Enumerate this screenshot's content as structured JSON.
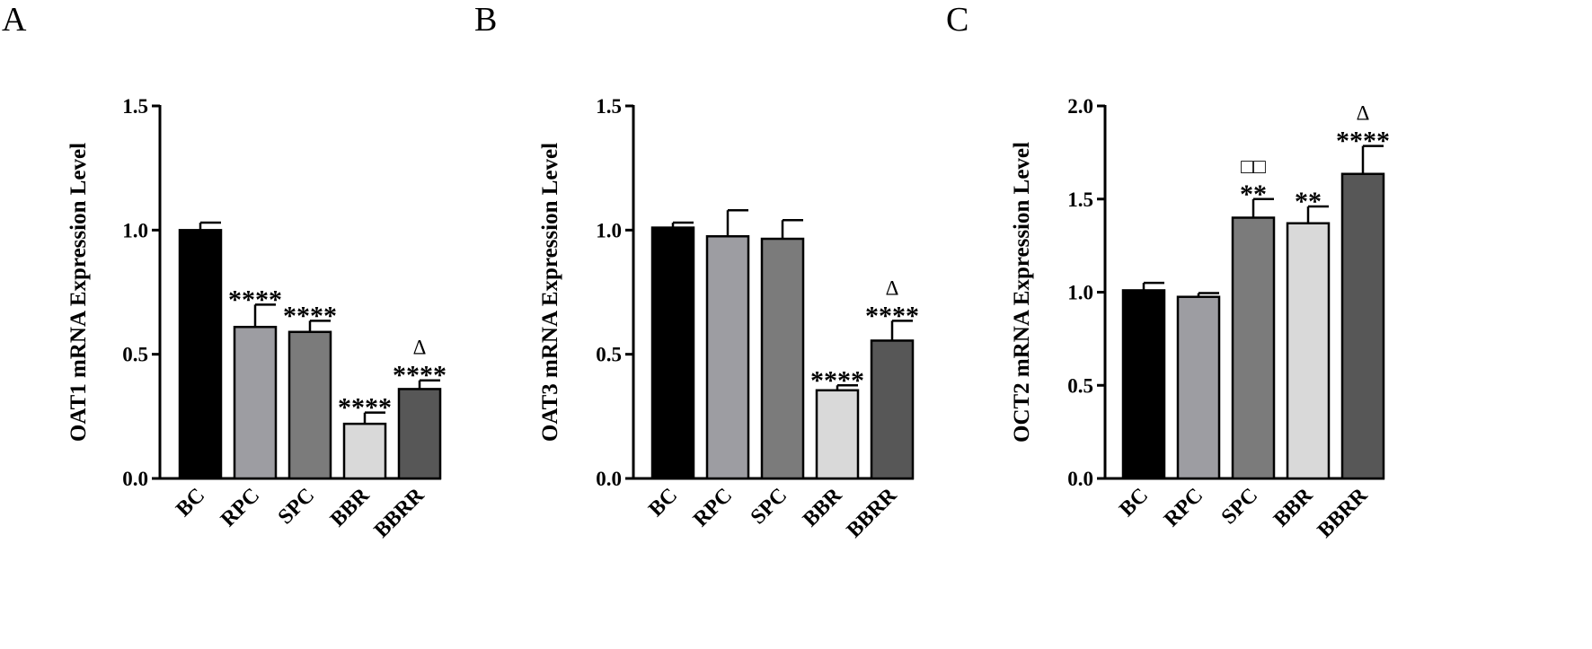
{
  "chart_data": [
    {
      "type": "bar",
      "panel_label": "A",
      "categories": [
        "BC",
        "RPC",
        "SPC",
        "BBR",
        "BBRR"
      ],
      "values": [
        1.0,
        0.61,
        0.59,
        0.22,
        0.36
      ],
      "errors": [
        0.03,
        0.09,
        0.045,
        0.045,
        0.035
      ],
      "colors": [
        "#000000",
        "#9d9da2",
        "#7b7b7b",
        "#d9d9d9",
        "#575757"
      ],
      "annotations": [
        [],
        [
          "****"
        ],
        [
          "****"
        ],
        [
          "****"
        ],
        [
          "****",
          "Δ"
        ]
      ],
      "ylabel": "OAT1 mRNA Expression Level",
      "ylim": [
        0,
        1.5
      ],
      "yticks": [
        0,
        0.5,
        1.0,
        1.5
      ],
      "ytick_labels": [
        "0.0",
        "0.5",
        "1.0",
        "1.5"
      ]
    },
    {
      "type": "bar",
      "panel_label": "B",
      "categories": [
        "BC",
        "RPC",
        "SPC",
        "BBR",
        "BBRR"
      ],
      "values": [
        1.01,
        0.975,
        0.965,
        0.355,
        0.555
      ],
      "errors": [
        0.02,
        0.105,
        0.075,
        0.02,
        0.08
      ],
      "colors": [
        "#000000",
        "#9d9da2",
        "#7b7b7b",
        "#d9d9d9",
        "#575757"
      ],
      "annotations": [
        [],
        [],
        [],
        [
          "****"
        ],
        [
          "****",
          "Δ"
        ]
      ],
      "ylabel": "OAT3 mRNA Expression Level",
      "ylim": [
        0,
        1.5
      ],
      "yticks": [
        0,
        0.5,
        1.0,
        1.5
      ],
      "ytick_labels": [
        "0.0",
        "0.5",
        "1.0",
        "1.5"
      ]
    },
    {
      "type": "bar",
      "panel_label": "C",
      "categories": [
        "BC",
        "RPC",
        "SPC",
        "BBR",
        "BBRR"
      ],
      "values": [
        1.01,
        0.975,
        1.4,
        1.37,
        1.635
      ],
      "errors": [
        0.04,
        0.02,
        0.1,
        0.09,
        0.15
      ],
      "colors": [
        "#000000",
        "#9d9da2",
        "#7b7b7b",
        "#d9d9d9",
        "#575757"
      ],
      "annotations": [
        [],
        [],
        [
          "**",
          "□□"
        ],
        [
          "**"
        ],
        [
          "****",
          "Δ"
        ]
      ],
      "ylabel": "OCT2 mRNA Expression Level",
      "ylim": [
        0,
        2.0
      ],
      "yticks": [
        0,
        0.5,
        1.0,
        1.5,
        2.0
      ],
      "ytick_labels": [
        "0.0",
        "0.5",
        "1.0",
        "1.5",
        "2.0"
      ]
    }
  ]
}
